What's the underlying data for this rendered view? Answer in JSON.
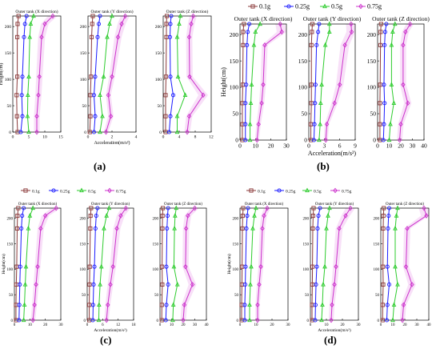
{
  "figure": {
    "panel_labels": [
      "(a)",
      "(b)",
      "(c)",
      "(d)"
    ],
    "colors": {
      "0.1g": "#8B3A3A",
      "0.25g": "#1a1aff",
      "0.5g": "#2ecc2e",
      "0.75g": "#cc33cc",
      "band": "#f3c6f3"
    },
    "heights": [
      0,
      30,
      70,
      105,
      180,
      205,
      220
    ]
  },
  "chart_data": [
    {
      "panel": "(a)",
      "type": "line",
      "orientation": "profile",
      "subplots": [
        {
          "title": "Outer tank (X direction)",
          "ylabel": "Height(cm)",
          "xlabel": "",
          "xlim": [
            0,
            15
          ],
          "xticks": [
            0,
            5,
            10,
            15
          ],
          "ylim": [
            0,
            220
          ],
          "yticks": [
            0,
            50,
            100,
            150,
            200
          ],
          "series": [
            {
              "name": "0.1g",
              "values": [
                1.5,
                1.3,
                1.2,
                1.4,
                1.4,
                1.5,
                1.8
              ]
            },
            {
              "name": "0.25g",
              "values": [
                2.5,
                3,
                2.8,
                3,
                3.5,
                3.8,
                4.3
              ]
            },
            {
              "name": "0.5g",
              "values": [
                5,
                4.6,
                4.7,
                5,
                5.3,
                5.6,
                6.5
              ]
            },
            {
              "name": "0.75g",
              "values": [
                7.5,
                7.5,
                8,
                8.3,
                9,
                10,
                12.5
              ]
            }
          ]
        },
        {
          "title": "Outer tank (Y direction)",
          "ylabel": "",
          "xlabel": "Acceleration(m/s²)",
          "xlim": [
            0,
            4
          ],
          "xticks": [
            0,
            2,
            4
          ],
          "ylim": [
            0,
            220
          ],
          "yticks": [
            0,
            50,
            100,
            150,
            200
          ],
          "series": [
            {
              "name": "0.1g",
              "values": [
                0.15,
                0.2,
                0.2,
                0.25,
                0.3,
                0.35,
                0.4
              ]
            },
            {
              "name": "0.25g",
              "values": [
                0.5,
                0.6,
                0.5,
                0.6,
                0.8,
                0.9,
                1.0
              ]
            },
            {
              "name": "0.5g",
              "values": [
                1.0,
                1.2,
                1.0,
                1.3,
                1.6,
                1.8,
                2.0
              ]
            },
            {
              "name": "0.75g",
              "values": [
                1.5,
                1.9,
                1.7,
                2.0,
                2.5,
                2.8,
                3.1
              ]
            }
          ]
        },
        {
          "title": "Outer tank (Z direction)",
          "ylabel": "",
          "xlabel": "",
          "xlim": [
            0,
            12
          ],
          "xticks": [
            0,
            4,
            8,
            12
          ],
          "ylim": [
            0,
            220
          ],
          "yticks": [
            0,
            50,
            100,
            150,
            200
          ],
          "series": [
            {
              "name": "0.1g",
              "values": [
                0.6,
                0.6,
                0.6,
                0.7,
                0.8,
                0.8,
                0.9
              ]
            },
            {
              "name": "0.25g",
              "values": [
                1.5,
                1.8,
                2.5,
                1.8,
                1.7,
                1.8,
                2
              ]
            },
            {
              "name": "0.5g",
              "values": [
                3.5,
                3.5,
                5.5,
                3.7,
                3.5,
                4,
                4.3
              ]
            },
            {
              "name": "0.75g",
              "values": [
                6,
                6.5,
                10,
                6.6,
                6.5,
                7,
                7.5
              ]
            }
          ]
        }
      ]
    },
    {
      "panel": "(b)",
      "type": "line",
      "orientation": "profile",
      "legend": [
        "0.1g",
        "0.25g",
        "0.5g",
        "0.75g"
      ],
      "subplots": [
        {
          "title": "Outer tank (X direction)",
          "ylabel": "Height(cm)",
          "xlabel": "",
          "xlim": [
            0,
            30
          ],
          "xticks": [
            0,
            10,
            20,
            30
          ],
          "ylim": [
            0,
            220
          ],
          "yticks": [
            0,
            50,
            100,
            150,
            200
          ],
          "series": [
            {
              "name": "0.1g",
              "values": [
                1.5,
                1.5,
                1.5,
                1.8,
                2,
                2,
                2.5
              ]
            },
            {
              "name": "0.25g",
              "values": [
                3.5,
                3.5,
                3.5,
                4,
                4.5,
                5,
                6
              ]
            },
            {
              "name": "0.5g",
              "values": [
                6.5,
                6.5,
                7,
                7.5,
                9,
                10,
                13
              ]
            },
            {
              "name": "0.75g",
              "values": [
                11,
                12,
                14,
                15,
                16,
                27,
                26
              ]
            }
          ]
        },
        {
          "title": "Outer tank (Y direction)",
          "ylabel": "",
          "xlabel": "Acceleration(m/s²)",
          "xlim": [
            0,
            9
          ],
          "xticks": [
            0,
            3,
            6,
            9
          ],
          "ylim": [
            0,
            220
          ],
          "yticks": [
            0,
            50,
            100,
            150,
            200
          ],
          "series": [
            {
              "name": "0.1g",
              "values": [
                0.4,
                0.4,
                0.5,
                0.5,
                0.5,
                0.6,
                0.7
              ]
            },
            {
              "name": "0.25g",
              "values": [
                1,
                1.1,
                1.2,
                1.3,
                1.5,
                1.8,
                2
              ]
            },
            {
              "name": "0.5g",
              "values": [
                2,
                2.2,
                2.3,
                2.5,
                3.2,
                4,
                4
              ]
            },
            {
              "name": "0.75g",
              "values": [
                3.3,
                3.5,
                5,
                6,
                7,
                8.3,
                8.2
              ]
            }
          ]
        },
        {
          "title": "Outer tank (Z direction)",
          "ylabel": "",
          "xlabel": "",
          "xlim": [
            0,
            40
          ],
          "xticks": [
            0,
            10,
            20,
            30,
            40
          ],
          "ylim": [
            0,
            220
          ],
          "yticks": [
            0,
            50,
            100,
            150,
            200
          ],
          "series": [
            {
              "name": "0.1g",
              "values": [
                2,
                2,
                2,
                2.2,
                2.5,
                2.6,
                3
              ]
            },
            {
              "name": "0.25g",
              "values": [
                5,
                5.5,
                6,
                5.5,
                6,
                6.5,
                7.5
              ]
            },
            {
              "name": "0.5g",
              "values": [
                10,
                11,
                14,
                12,
                12,
                13,
                15
              ]
            },
            {
              "name": "0.75g",
              "values": [
                19,
                20,
                26,
                22,
                22,
                24,
                28
              ]
            }
          ]
        }
      ]
    },
    {
      "panel": "(c)",
      "type": "line",
      "orientation": "profile",
      "legend": [
        "0.1g",
        "0.25g",
        "0.5g",
        "0.75g"
      ],
      "subplots": [
        {
          "title": "Outer tank (X direction)",
          "ylabel": "Height(cm)",
          "xlabel": "",
          "xlim": [
            0,
            30
          ],
          "xticks": [
            0,
            10,
            20,
            30
          ],
          "ylim": [
            0,
            220
          ],
          "yticks": [
            0,
            50,
            100,
            150,
            200
          ],
          "series": [
            {
              "name": "0.1g",
              "values": [
                1,
                1,
                1.2,
                1.5,
                1.8,
                2,
                2.5
              ]
            },
            {
              "name": "0.25g",
              "values": [
                3,
                3.2,
                3.5,
                3.8,
                4.5,
                5,
                6
              ]
            },
            {
              "name": "0.5g",
              "values": [
                6,
                6.5,
                7,
                7.5,
                9,
                10,
                12
              ]
            },
            {
              "name": "0.75g",
              "values": [
                12,
                13,
                14,
                15,
                17,
                20,
                27
              ]
            }
          ]
        },
        {
          "title": "Outer tank (Y direction)",
          "ylabel": "",
          "xlabel": "Acceleration(m/s²)",
          "xlim": [
            0,
            18
          ],
          "xticks": [
            0,
            6,
            12,
            18
          ],
          "ylim": [
            0,
            220
          ],
          "yticks": [
            0,
            50,
            100,
            150,
            200
          ],
          "series": [
            {
              "name": "0.1g",
              "values": [
                0.8,
                0.8,
                0.9,
                1,
                1.2,
                1.3,
                1.5
              ]
            },
            {
              "name": "0.25g",
              "values": [
                2.2,
                2.3,
                2.5,
                2.8,
                3.2,
                3.5,
                4
              ]
            },
            {
              "name": "0.5g",
              "values": [
                4.5,
                4.6,
                5,
                5.5,
                6.5,
                7.5,
                8.5
              ]
            },
            {
              "name": "0.75g",
              "values": [
                7.5,
                8,
                9,
                10,
                11.5,
                13,
                15
              ]
            }
          ]
        },
        {
          "title": "Outer tank (Z direction)",
          "ylabel": "",
          "xlabel": "",
          "xlim": [
            0,
            40
          ],
          "xticks": [
            0,
            10,
            20,
            30,
            40
          ],
          "ylim": [
            0,
            220
          ],
          "yticks": [
            0,
            50,
            100,
            150,
            200
          ],
          "series": [
            {
              "name": "0.1g",
              "values": [
                1.5,
                1.6,
                2,
                1.8,
                2,
                2.2,
                2.5
              ]
            },
            {
              "name": "0.25g",
              "values": [
                5,
                5.5,
                7,
                5.5,
                6,
                6.5,
                7
              ]
            },
            {
              "name": "0.5g",
              "values": [
                11,
                11.5,
                15,
                12,
                12.5,
                13,
                14
              ]
            },
            {
              "name": "0.75g",
              "values": [
                20,
                21,
                28,
                22,
                22.5,
                24,
                30
              ]
            }
          ]
        }
      ]
    },
    {
      "panel": "(d)",
      "type": "line",
      "orientation": "profile",
      "legend": [
        "0.1g",
        "0.25g",
        "0.5g",
        "0.75g"
      ],
      "subplots": [
        {
          "title": "Outer tank (X direction)",
          "ylabel": "Height(cm)",
          "xlabel": "",
          "xlim": [
            0,
            30
          ],
          "xticks": [
            0,
            10,
            20,
            30
          ],
          "ylim": [
            0,
            220
          ],
          "yticks": [
            0,
            50,
            100,
            150,
            200
          ],
          "series": [
            {
              "name": "0.1g",
              "values": [
                1,
                1,
                1.2,
                1.3,
                1.5,
                1.7,
                2
              ]
            },
            {
              "name": "0.25g",
              "values": [
                3,
                3,
                3.3,
                3.5,
                4,
                4.5,
                5
              ]
            },
            {
              "name": "0.5g",
              "values": [
                6,
                6,
                6.5,
                7,
                8,
                9,
                10
              ]
            },
            {
              "name": "0.75g",
              "values": [
                11,
                11,
                12,
                13,
                14,
                15,
                17
              ]
            }
          ]
        },
        {
          "title": "Outer tank (Y direction)",
          "ylabel": "",
          "xlabel": "Acceleration(m/s²)",
          "xlim": [
            0,
            30
          ],
          "xticks": [
            0,
            10,
            20,
            30
          ],
          "ylim": [
            0,
            220
          ],
          "yticks": [
            0,
            50,
            100,
            150,
            200
          ],
          "series": [
            {
              "name": "0.1g",
              "values": [
                1,
                1,
                1.2,
                1.3,
                1.5,
                1.7,
                2
              ]
            },
            {
              "name": "0.25g",
              "values": [
                3,
                3.2,
                3.5,
                4,
                4.5,
                5,
                6
              ]
            },
            {
              "name": "0.5g",
              "values": [
                7,
                7.5,
                8,
                9,
                10,
                11,
                12
              ]
            },
            {
              "name": "0.75g",
              "values": [
                13,
                13.5,
                15,
                16,
                18,
                22,
                25
              ]
            }
          ]
        },
        {
          "title": "Outer tank (Z direction)",
          "ylabel": "",
          "xlabel": "",
          "xlim": [
            0,
            40
          ],
          "xticks": [
            0,
            10,
            20,
            30,
            40
          ],
          "ylim": [
            0,
            220
          ],
          "yticks": [
            0,
            50,
            100,
            150,
            200
          ],
          "series": [
            {
              "name": "0.1g",
              "values": [
                1.5,
                1.6,
                2,
                1.8,
                2,
                2.2,
                2.5
              ]
            },
            {
              "name": "0.25g",
              "values": [
                5,
                5.5,
                7,
                5.5,
                6,
                6.5,
                7
              ]
            },
            {
              "name": "0.5g",
              "values": [
                10,
                11,
                14,
                12,
                12,
                13,
                14
              ]
            },
            {
              "name": "0.75g",
              "values": [
                18,
                19,
                26,
                21,
                22,
                38,
                36
              ]
            }
          ]
        }
      ]
    }
  ]
}
